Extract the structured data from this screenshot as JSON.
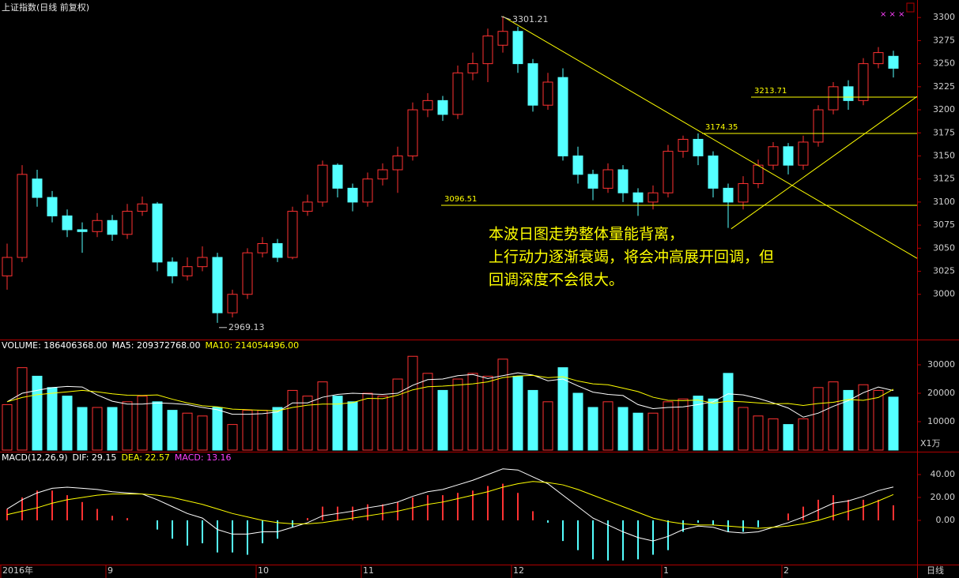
{
  "chart_data": [
    {
      "type": "candlestick",
      "title": "上证指数(日线 前复权)",
      "open": [
        3020,
        3040,
        3125,
        3105,
        3085,
        3070,
        3068,
        3080,
        3065,
        3090,
        3098,
        3035,
        3020,
        3030,
        3040,
        2980,
        3000,
        3045,
        3055,
        3040,
        3090,
        3100,
        3140,
        3115,
        3100,
        3125,
        3135,
        3150,
        3200,
        3210,
        3195,
        3240,
        3250,
        3270,
        3285,
        3250,
        3205,
        3235,
        3150,
        3130,
        3115,
        3135,
        3110,
        3100,
        3110,
        3155,
        3168,
        3150,
        3115,
        3100,
        3120,
        3140,
        3160,
        3140,
        3165,
        3200,
        3225,
        3210,
        3250,
        3258
      ],
      "high": [
        3055,
        3140,
        3135,
        3112,
        3092,
        3078,
        3088,
        3086,
        3098,
        3106,
        3100,
        3040,
        3040,
        3052,
        3045,
        3005,
        3050,
        3062,
        3060,
        3095,
        3108,
        3145,
        3142,
        3120,
        3132,
        3142,
        3160,
        3208,
        3218,
        3215,
        3248,
        3262,
        3288,
        3301.21,
        3290,
        3255,
        3240,
        3245,
        3160,
        3135,
        3142,
        3140,
        3115,
        3118,
        3162,
        3172,
        3174.35,
        3155,
        3120,
        3128,
        3146,
        3165,
        3164,
        3172,
        3205,
        3230,
        3232,
        3256,
        3268,
        3264
      ],
      "low": [
        3005,
        3035,
        3095,
        3078,
        3062,
        3045,
        3062,
        3058,
        3060,
        3085,
        3025,
        3012,
        3015,
        3025,
        2969.13,
        2975,
        2995,
        3040,
        3035,
        3038,
        3085,
        3095,
        3105,
        3090,
        3095,
        3118,
        3110,
        3145,
        3192,
        3188,
        3190,
        3232,
        3230,
        3262,
        3240,
        3198,
        3200,
        3145,
        3120,
        3102,
        3110,
        3100,
        3085,
        3092,
        3105,
        3148,
        3140,
        3105,
        3072,
        3092,
        3115,
        3135,
        3130,
        3135,
        3160,
        3195,
        3200,
        3205,
        3245,
        3235
      ],
      "close": [
        3040,
        3130,
        3105,
        3085,
        3070,
        3068,
        3080,
        3065,
        3090,
        3098,
        3035,
        3020,
        3030,
        3040,
        2980,
        3000,
        3045,
        3055,
        3040,
        3090,
        3100,
        3140,
        3115,
        3100,
        3125,
        3135,
        3150,
        3200,
        3210,
        3195,
        3240,
        3250,
        3280,
        3285,
        3250,
        3205,
        3230,
        3150,
        3130,
        3115,
        3135,
        3110,
        3100,
        3110,
        3155,
        3168,
        3150,
        3115,
        3100,
        3120,
        3140,
        3160,
        3140,
        3165,
        3200,
        3225,
        3210,
        3250,
        3262,
        3245
      ],
      "up_color": "#ff3232",
      "down_color": "#54ffff",
      "ylim": [
        2951,
        3319
      ],
      "yticks": [
        3000,
        3025,
        3050,
        3075,
        3100,
        3125,
        3150,
        3175,
        3200,
        3225,
        3250,
        3275,
        3300
      ],
      "hlines": [
        3096.51,
        3174.35,
        3213.71
      ],
      "trendlines": [
        {
          "x": [
            33,
            60.58
          ],
          "y": [
            3301.21,
            3039
          ]
        },
        {
          "x": [
            48.2,
            60.58
          ],
          "y": [
            3071,
            3214.5
          ]
        }
      ],
      "annotation": [
        "本波日图走势整体量能背离，",
        "上行动力逐渐衰竭，将会冲高展开回调，但",
        "回调深度不会很大。"
      ]
    },
    {
      "type": "bar",
      "legend": [
        "VOLUME: 186406368.00",
        "MA5: 209372768.00",
        "MA10: 214054496.00"
      ],
      "legend_colors": [
        "#ffffff",
        "#ffffff",
        "#ffff00"
      ],
      "unit_label": "X1万",
      "values": [
        16000,
        29000,
        26000,
        22000,
        19000,
        15000,
        15000,
        15000,
        17000,
        19000,
        17000,
        14000,
        13000,
        12000,
        15000,
        9000,
        14000,
        14000,
        15000,
        21000,
        19000,
        24000,
        19000,
        17000,
        20000,
        19000,
        25000,
        33000,
        27000,
        21000,
        25000,
        27000,
        26000,
        32000,
        26000,
        21000,
        17000,
        29000,
        20000,
        15000,
        17000,
        15000,
        13000,
        13000,
        17000,
        18000,
        19000,
        18000,
        27000,
        15000,
        12000,
        11000,
        9000,
        11000,
        22000,
        24000,
        21000,
        23000,
        21000,
        18640.64
      ],
      "series": [
        {
          "color": "#ffffff",
          "values": [
            17000,
            20000,
            21000,
            22000,
            22400,
            22200,
            19400,
            17200,
            16200,
            16200,
            16600,
            16400,
            16000,
            15000,
            14200,
            12600,
            12600,
            12800,
            13400,
            16600,
            16600,
            18600,
            19600,
            20000,
            19800,
            19600,
            20000,
            22800,
            24800,
            25000,
            26200,
            26600,
            25200,
            26200,
            27200,
            26400,
            24400,
            25000,
            22600,
            20400,
            19600,
            19200,
            16000,
            14600,
            15000,
            15200,
            16000,
            17000,
            19800,
            19400,
            18200,
            16600,
            14800,
            11600,
            13000,
            15400,
            17400,
            20200,
            22200,
            20937.28
          ]
        },
        {
          "color": "#ffff00",
          "values": [
            17000,
            18500,
            19500,
            20000,
            20500,
            21000,
            20500,
            19800,
            19300,
            19200,
            19400,
            17900,
            16600,
            15600,
            15200,
            14400,
            14200,
            14000,
            13800,
            15000,
            15800,
            16200,
            16200,
            16700,
            18200,
            18100,
            19300,
            21200,
            22300,
            22500,
            22900,
            23300,
            24000,
            25500,
            26100,
            26300,
            25500,
            25800,
            24300,
            23300,
            23000,
            21800,
            20600,
            18600,
            17500,
            17400,
            17600,
            16500,
            17200,
            17000,
            16600,
            16300,
            16400,
            15700,
            16400,
            16800,
            17800,
            17500,
            18500,
            21405.45
          ]
        }
      ],
      "ylim": [
        0,
        38900
      ],
      "yticks": [
        10000,
        20000,
        30000
      ]
    },
    {
      "type": "macd",
      "legend": [
        "MACD(12,26,9)",
        "DIF: 29.15",
        "DEA: 22.57",
        "MACD: 13.16"
      ],
      "legend_colors": [
        "#ffffff",
        "#ffffff",
        "#ffff00",
        "#ff40ff"
      ],
      "hist": [
        10,
        20,
        26,
        26,
        22,
        16,
        10,
        4,
        2,
        0,
        -8,
        -16,
        -22,
        -20,
        -28,
        -28,
        -30,
        -20,
        -16,
        -6,
        2,
        12,
        12,
        12,
        14,
        14,
        16,
        20,
        22,
        22,
        24,
        26,
        30,
        32,
        24,
        8,
        -2,
        -18,
        -26,
        -34,
        -35,
        -35,
        -34,
        -30,
        -26,
        -10,
        -2,
        -4,
        -10,
        -10,
        -6,
        0,
        6,
        12,
        18,
        22,
        18,
        18,
        18,
        13.16
      ],
      "series": [
        {
          "color": "#ffffff",
          "values": [
            10,
            18,
            24,
            28,
            29,
            28,
            27,
            25,
            24,
            23,
            18,
            12,
            6,
            2,
            -8,
            -12,
            -12,
            -10,
            -10,
            -6,
            -2,
            4,
            6,
            8,
            11,
            13,
            16,
            21,
            25,
            27,
            31,
            35,
            40,
            45,
            44,
            38,
            32,
            22,
            12,
            2,
            -4,
            -10,
            -15,
            -18,
            -14,
            -8,
            -5,
            -6,
            -10,
            -11,
            -10,
            -6,
            -2,
            3,
            9,
            15,
            17,
            21,
            26,
            29.15
          ]
        },
        {
          "color": "#ffff00",
          "values": [
            5,
            8,
            11,
            15,
            18,
            20,
            22,
            23,
            23,
            23,
            22,
            20,
            17,
            14,
            10,
            6,
            3,
            0,
            -2,
            -3,
            -3,
            -2,
            0,
            2,
            4,
            6,
            8,
            11,
            14,
            16,
            19,
            22,
            25,
            29,
            32,
            34,
            33,
            31,
            27,
            22,
            17,
            12,
            7,
            2,
            -1,
            -3,
            -4,
            -4,
            -5,
            -6,
            -7,
            -6,
            -5,
            -3,
            0,
            4,
            8,
            12,
            17,
            22.57
          ]
        }
      ],
      "categories": [
        "2016年",
        null,
        null,
        null,
        null,
        null,
        null,
        "9",
        null,
        null,
        null,
        null,
        null,
        null,
        null,
        null,
        null,
        "10",
        null,
        null,
        null,
        null,
        null,
        null,
        "11",
        null,
        null,
        null,
        null,
        null,
        null,
        null,
        null,
        null,
        "12",
        null,
        null,
        null,
        null,
        null,
        null,
        null,
        null,
        null,
        "1",
        null,
        null,
        null,
        null,
        null,
        null,
        null,
        "2",
        null,
        null,
        null,
        null,
        null,
        null,
        null
      ],
      "period_label": "日线",
      "ylim": [
        -38.6,
        60
      ],
      "yticks": [
        {
          "value": 0,
          "label": "0.00"
        },
        {
          "value": 20,
          "label": "20.00"
        },
        {
          "value": 40,
          "label": "40.00"
        }
      ]
    }
  ]
}
